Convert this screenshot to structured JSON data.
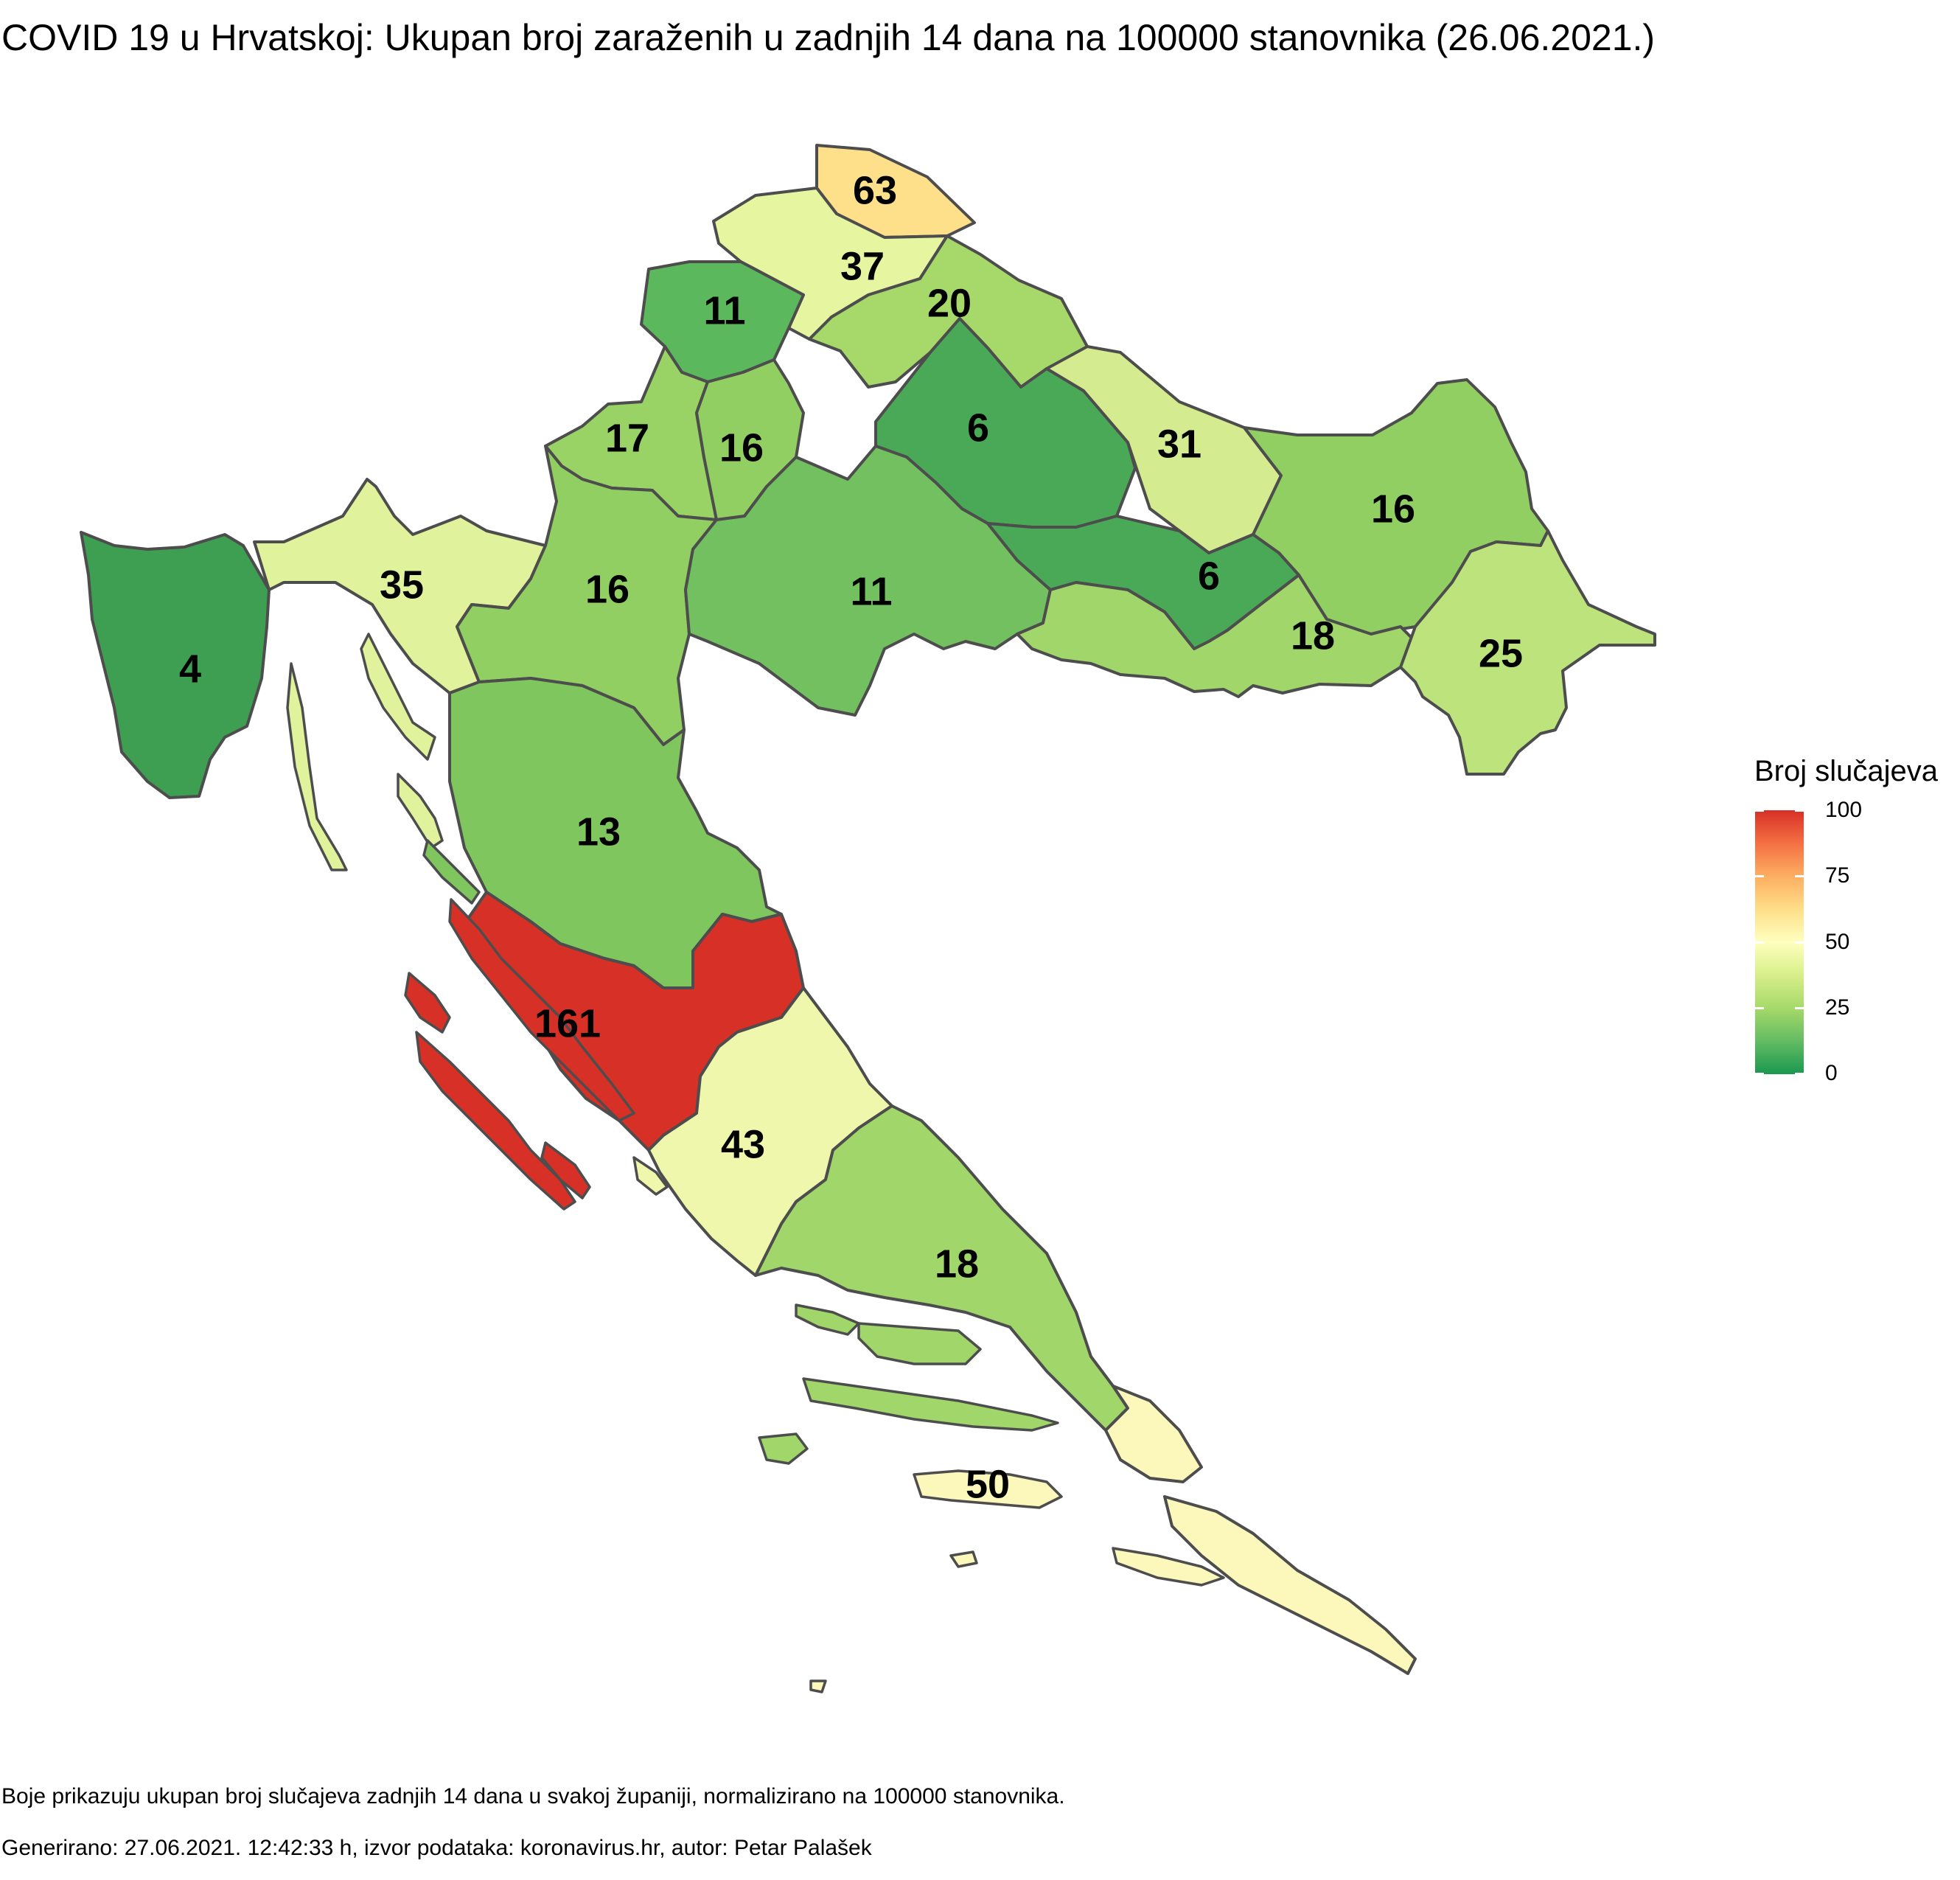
{
  "title": "COVID 19 u Hrvatskoj: Ukupan broj zaraženih u zadnjih 14 dana na 100000 stanovnika (26.06.2021.)",
  "legend": {
    "title": "Broj slučajeva",
    "ticks": [
      "100",
      "75",
      "50",
      "25",
      "0"
    ],
    "colors": [
      "#d73027",
      "#fdae61",
      "#ffffbf",
      "#a6d96a",
      "#1a9850"
    ]
  },
  "counties": [
    {
      "value": 63,
      "color": "#fee08b"
    },
    {
      "value": 37,
      "color": "#e6f5a0"
    },
    {
      "value": 11,
      "color": "#5cb85c"
    },
    {
      "value": 20,
      "color": "#a6d96a"
    },
    {
      "value": 17,
      "color": "#99d265"
    },
    {
      "value": 16,
      "color": "#92cf63"
    },
    {
      "value": 6,
      "color": "#4aa957"
    },
    {
      "value": 31,
      "color": "#d4ec8f"
    },
    {
      "value": 16,
      "color": "#92cf63"
    },
    {
      "value": 35,
      "color": "#e0f29c"
    },
    {
      "value": 16,
      "color": "#92cf63"
    },
    {
      "value": 11,
      "color": "#72c05f"
    },
    {
      "value": 6,
      "color": "#4aa957"
    },
    {
      "value": 18,
      "color": "#a0d66a"
    },
    {
      "value": 25,
      "color": "#bde37d"
    },
    {
      "value": 4,
      "color": "#3e9f52"
    },
    {
      "value": 13,
      "color": "#80c65f"
    },
    {
      "value": 161,
      "color": "#d73027"
    },
    {
      "value": 43,
      "color": "#eef7ab"
    },
    {
      "value": 18,
      "color": "#a0d66a"
    },
    {
      "value": 50,
      "color": "#fcf8bb"
    }
  ],
  "caption": "Boje prikazuju ukupan broj slučajeva zadnjih 14 dana u svakoj županiji, normalizirano na 100000 stanovnika.",
  "credits": "Generirano: 27.06.2021. 12:42:33 h, izvor podataka: koronavirus.hr, autor: Petar Palašek"
}
